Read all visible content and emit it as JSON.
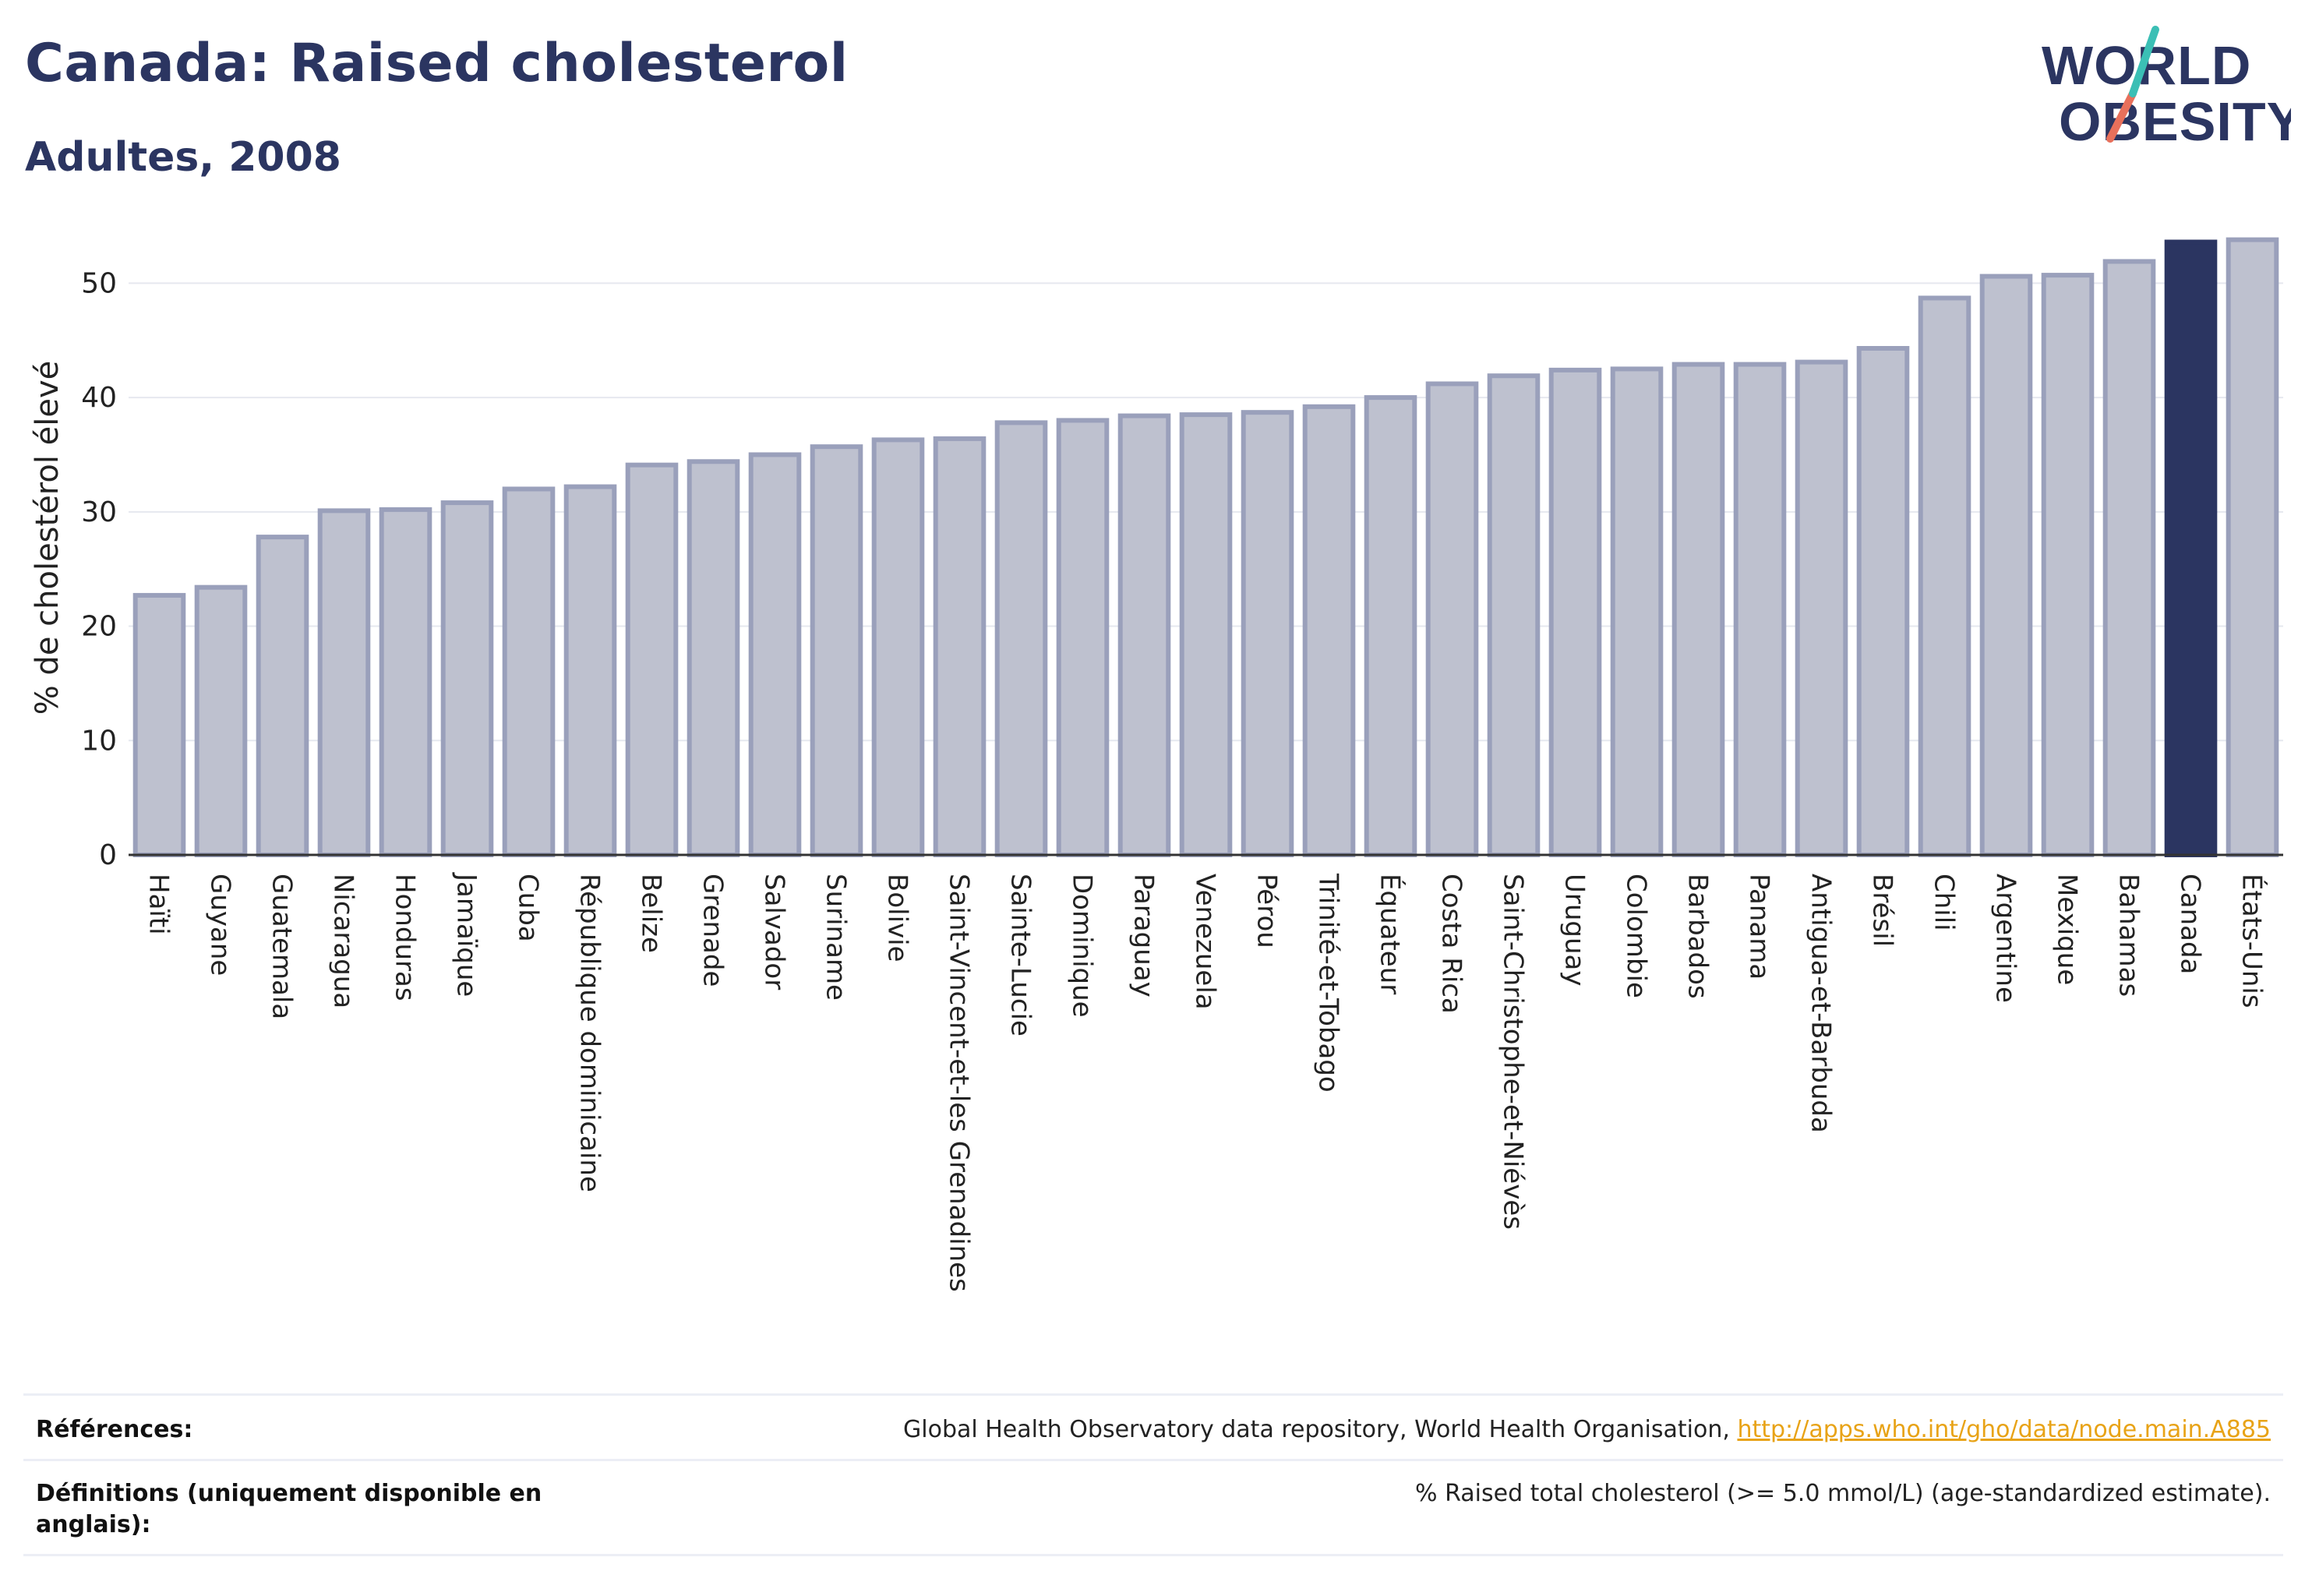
{
  "header": {
    "title": "Canada: Raised cholesterol",
    "subtitle": "Adultes, 2008"
  },
  "logo": {
    "line1": "WORLD",
    "line2": "OBESITY",
    "colors": {
      "text": "#2b3561",
      "slash_teal": "#3bbfb5",
      "slash_coral": "#e8705b"
    }
  },
  "chart_data": {
    "type": "bar",
    "ylabel": "% de cholestérol élevé",
    "ylim": [
      0,
      55
    ],
    "yticks": [
      0,
      10,
      20,
      30,
      40,
      50
    ],
    "grid": true,
    "highlight": "Canada",
    "colors": {
      "bar": "#bec1cf",
      "bar_edge": "#9aa0bb",
      "highlight": "#2b3561"
    },
    "categories": [
      "Haïti",
      "Guyane",
      "Guatemala",
      "Nicaragua",
      "Honduras",
      "Jamaïque",
      "Cuba",
      "République dominicaine",
      "Belize",
      "Grenade",
      "Salvador",
      "Suriname",
      "Bolivie",
      "Saint-Vincent-et-les Grenadines",
      "Sainte-Lucie",
      "Dominique",
      "Paraguay",
      "Venezuela",
      "Pérou",
      "Trinité-et-Tobago",
      "Équateur",
      "Costa Rica",
      "Saint-Christophe-et-Niévès",
      "Uruguay",
      "Colombie",
      "Barbados",
      "Panama",
      "Antigua-et-Barbuda",
      "Brésil",
      "Chili",
      "Argentine",
      "Mexique",
      "Bahamas",
      "Canada",
      "États-Unis"
    ],
    "values": [
      22.7,
      23.4,
      27.8,
      30.1,
      30.2,
      30.8,
      32.0,
      32.2,
      34.1,
      34.4,
      35.0,
      35.7,
      36.3,
      36.4,
      37.8,
      38.0,
      38.4,
      38.5,
      38.7,
      39.2,
      40.0,
      41.2,
      41.9,
      42.4,
      42.5,
      42.9,
      42.9,
      43.1,
      44.3,
      48.7,
      50.6,
      50.7,
      51.9,
      53.6,
      53.8
    ]
  },
  "footer": {
    "references_label": "Références:",
    "references_text": "Global Health Observatory data repository, World Health Organisation, ",
    "references_link": "http://apps.who.int/gho/data/node.main.A885",
    "definitions_label": "Définitions (uniquement disponible en anglais):",
    "definitions_text": "% Raised total cholesterol (>= 5.0 mmol/L) (age-standardized estimate)."
  }
}
